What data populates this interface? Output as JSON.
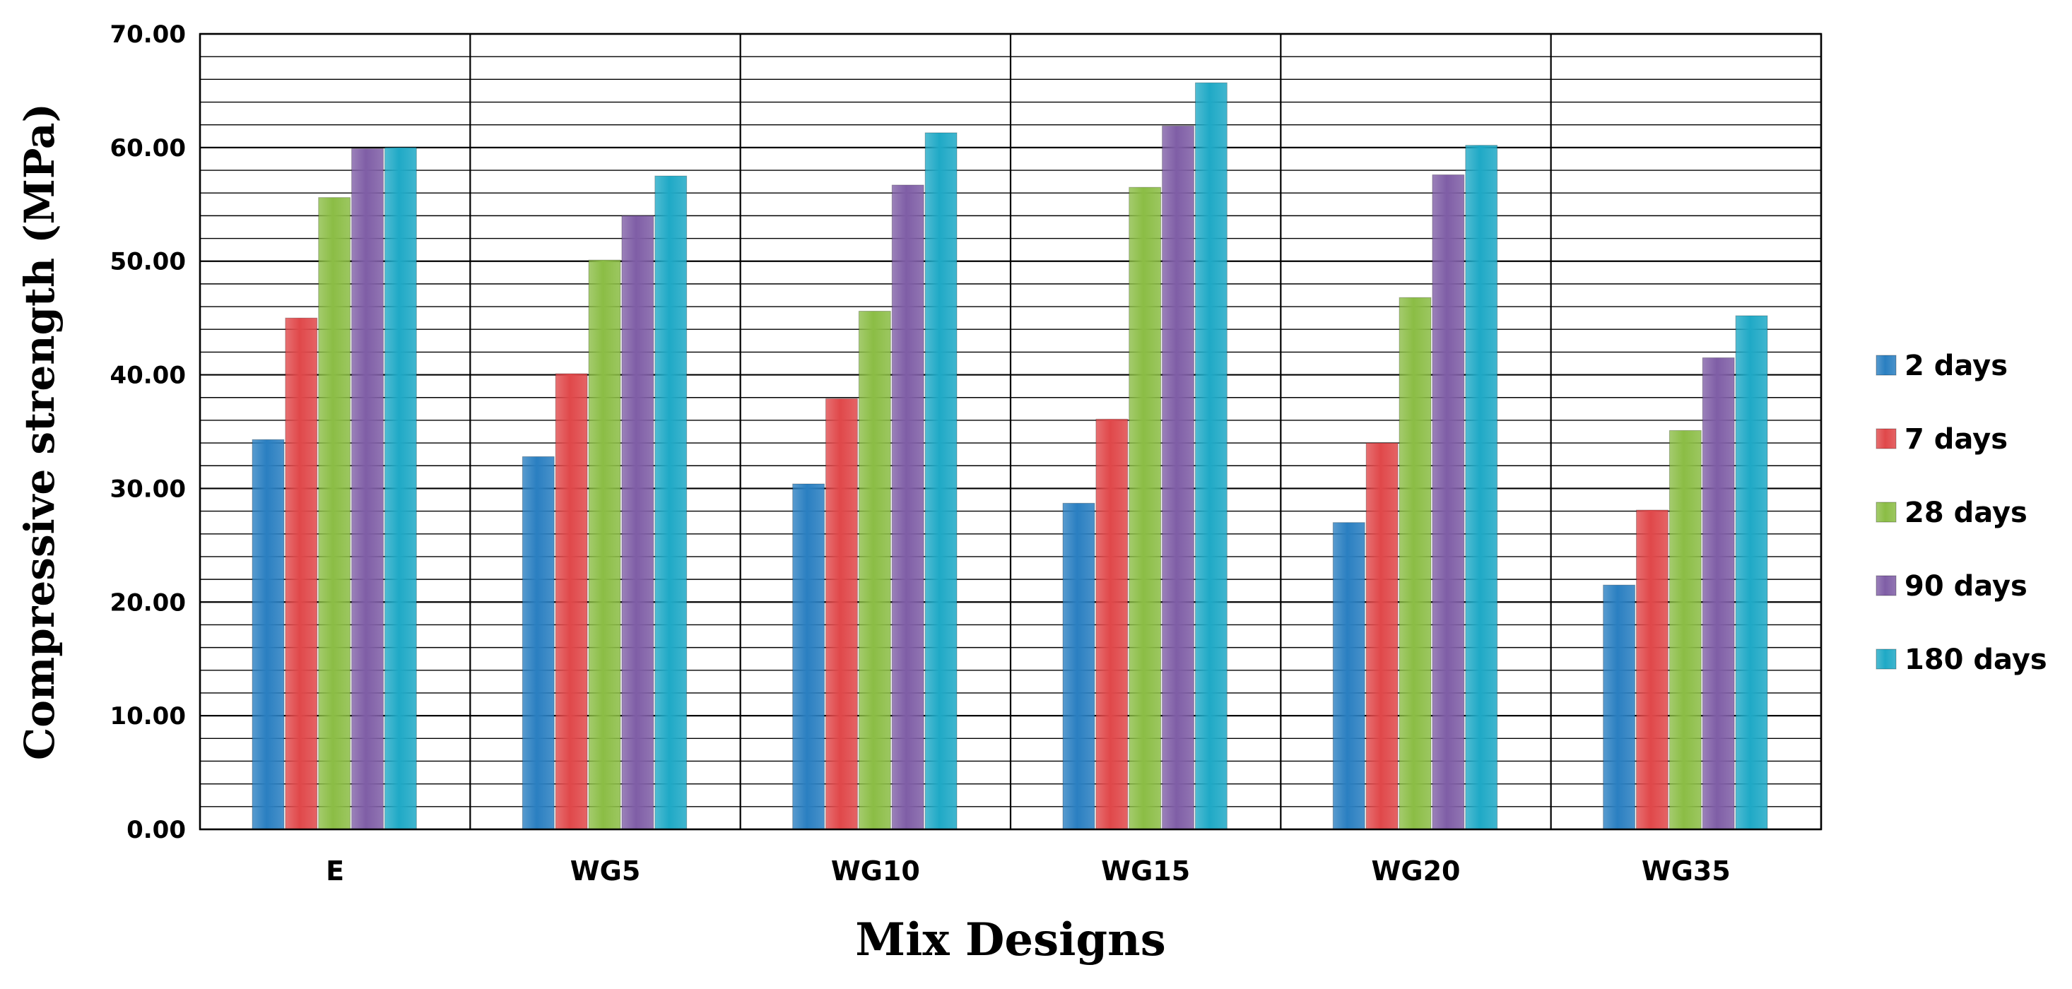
{
  "chart_data": {
    "type": "bar",
    "xlabel": "Mix Designs",
    "ylabel": "Compressive strength (MPa)",
    "ylim": [
      0,
      70
    ],
    "y_ticks": [
      "0.00",
      "10.00",
      "20.00",
      "30.00",
      "40.00",
      "50.00",
      "60.00",
      "70.00"
    ],
    "y_minor_step": 2,
    "grid": true,
    "legend_position": "right",
    "categories": [
      "E",
      "WG5",
      "WG10",
      "WG15",
      "WG20",
      "WG35"
    ],
    "series": [
      {
        "name": "2 days",
        "color": "#2a7fc1",
        "values": [
          34.3,
          32.8,
          30.4,
          28.7,
          27.0,
          21.5
        ]
      },
      {
        "name": "7 days",
        "color": "#e0484a",
        "values": [
          45.0,
          40.1,
          37.9,
          36.1,
          34.0,
          28.1
        ]
      },
      {
        "name": "28 days",
        "color": "#8bbd45",
        "values": [
          55.6,
          50.1,
          45.6,
          56.5,
          46.8,
          35.1
        ]
      },
      {
        "name": "90 days",
        "color": "#7f5ea6",
        "values": [
          59.9,
          54.0,
          56.7,
          61.9,
          57.6,
          41.5
        ]
      },
      {
        "name": "180 days",
        "color": "#1fa9c6",
        "values": [
          60.0,
          57.5,
          61.3,
          65.7,
          60.2,
          45.2
        ]
      }
    ]
  }
}
